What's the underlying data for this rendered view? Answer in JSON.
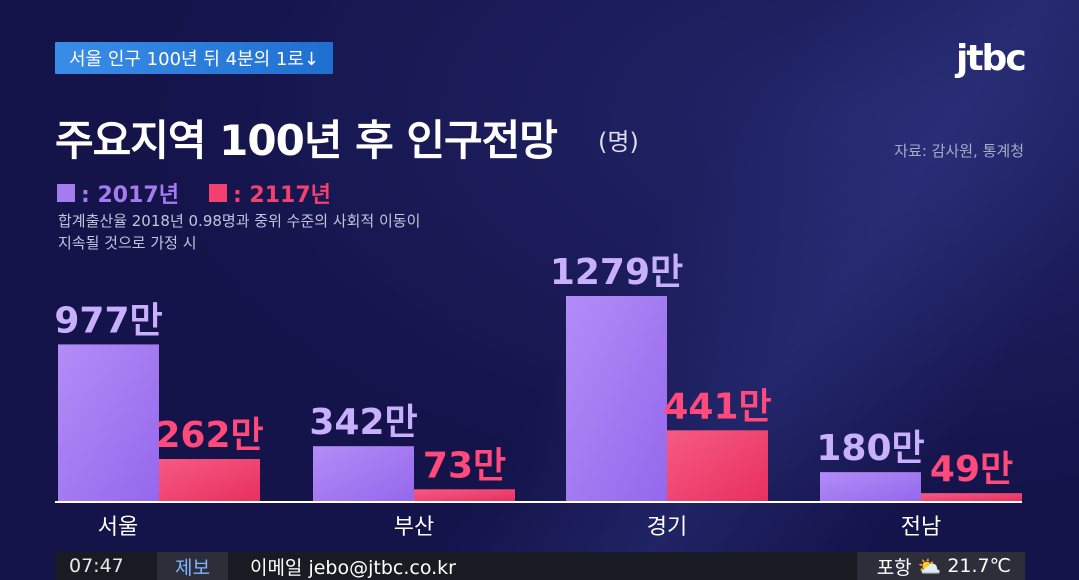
{
  "topic": "서울 인구 100년 뒤 4분의 1로↓",
  "logo": "jtbc",
  "title": "주요지역 100년 후 인구전망",
  "unit_label": "(명)",
  "source": "자료: 감사원, 통계청",
  "note_line1": "합계출산율 2018년 0.98명과 중위 수준의 사회적 이동이",
  "note_line2": "지속될 것으로 가정 시",
  "colors": {
    "series2017": "#a57bf0",
    "series2117": "#f2416f"
  },
  "chart_data": {
    "type": "bar",
    "categories": [
      "서울",
      "부산",
      "경기",
      "전남"
    ],
    "series": [
      {
        "name": "2017년",
        "values": [
          977,
          342,
          1279,
          180
        ],
        "labels": [
          "977만",
          "342만",
          "1279만",
          "180만"
        ]
      },
      {
        "name": "2117년",
        "values": [
          262,
          73,
          441,
          49
        ],
        "labels": [
          "262만",
          "73만",
          "441만",
          "49만"
        ]
      }
    ],
    "unit": "만 명",
    "legend_marker": "■:"
  },
  "ticker": {
    "time": "07:47",
    "tag": "제보",
    "message": "이메일 jebo@jtbc.co.kr",
    "city": "포항",
    "temp": "21.7℃"
  }
}
